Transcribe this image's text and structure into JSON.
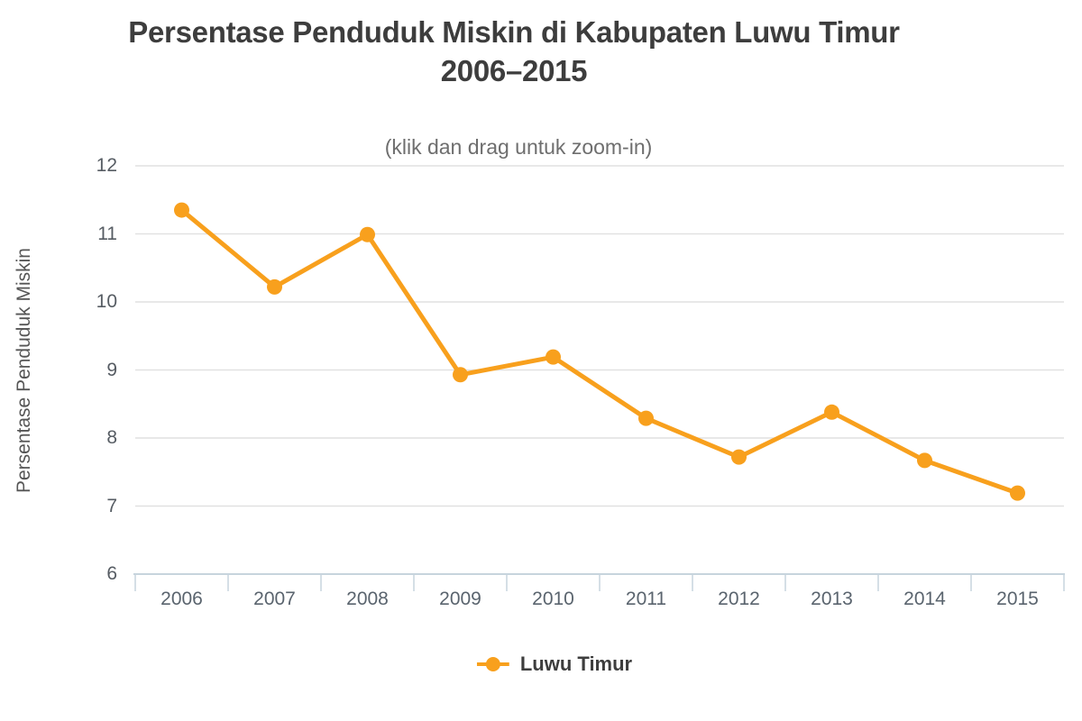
{
  "chart": {
    "title_line1": "Persentase Penduduk Miskin di Kabupaten Luwu Timur",
    "title_line2": "2006–2015",
    "subtitle": "(klik dan drag untuk zoom-in)",
    "colors": {
      "series_orange": "#F8A01D",
      "gridline": "#E1E1E1",
      "axis_line": "#C7D4DD",
      "title_text": "#3D3D3D",
      "label_text": "#5A646E"
    }
  },
  "chart_data": {
    "type": "line",
    "title": "Persentase Penduduk Miskin di Kabupaten Luwu Timur 2006–2015",
    "subtitle": "(klik dan drag untuk zoom-in)",
    "categories": [
      "2006",
      "2007",
      "2008",
      "2009",
      "2010",
      "2011",
      "2012",
      "2013",
      "2014",
      "2015"
    ],
    "series": [
      {
        "name": "Luwu Timur",
        "color": "#F8A01D",
        "values": [
          11.35,
          10.22,
          10.99,
          8.93,
          9.19,
          8.29,
          7.72,
          8.38,
          7.67,
          7.19
        ]
      }
    ],
    "xlabel": "",
    "ylabel": "Persentase Penduduk Miskin",
    "ylim": [
      6,
      12
    ],
    "ytick_step": 1,
    "grid": true,
    "legend_position": "bottom",
    "marker": "circle"
  }
}
